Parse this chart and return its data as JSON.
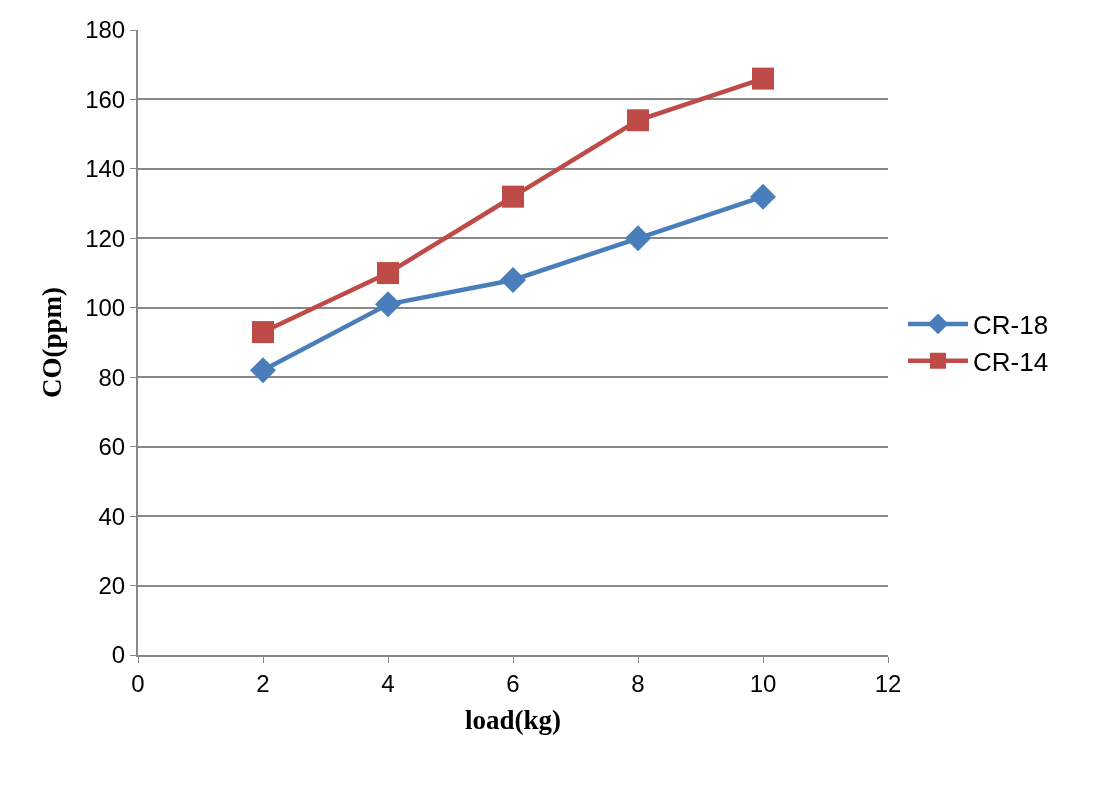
{
  "chart_data": {
    "type": "line",
    "xlabel": "load(kg)",
    "ylabel": "CO(ppm)",
    "x": [
      2,
      4,
      6,
      8,
      10
    ],
    "series": [
      {
        "name": "CR-18",
        "color": "#4a7ebb",
        "marker": "diamond",
        "values": [
          82,
          101,
          108,
          120,
          132
        ]
      },
      {
        "name": "CR-14",
        "color": "#be4b48",
        "marker": "square",
        "values": [
          93,
          110,
          132,
          154,
          166
        ]
      }
    ],
    "xlim": [
      0,
      12
    ],
    "xticks": [
      0,
      2,
      4,
      6,
      8,
      10,
      12
    ],
    "ylim": [
      0,
      180
    ],
    "yticks": [
      0,
      20,
      40,
      60,
      80,
      100,
      120,
      140,
      160,
      180
    ],
    "grid": "y",
    "legend": "right",
    "line_style": "solid"
  }
}
